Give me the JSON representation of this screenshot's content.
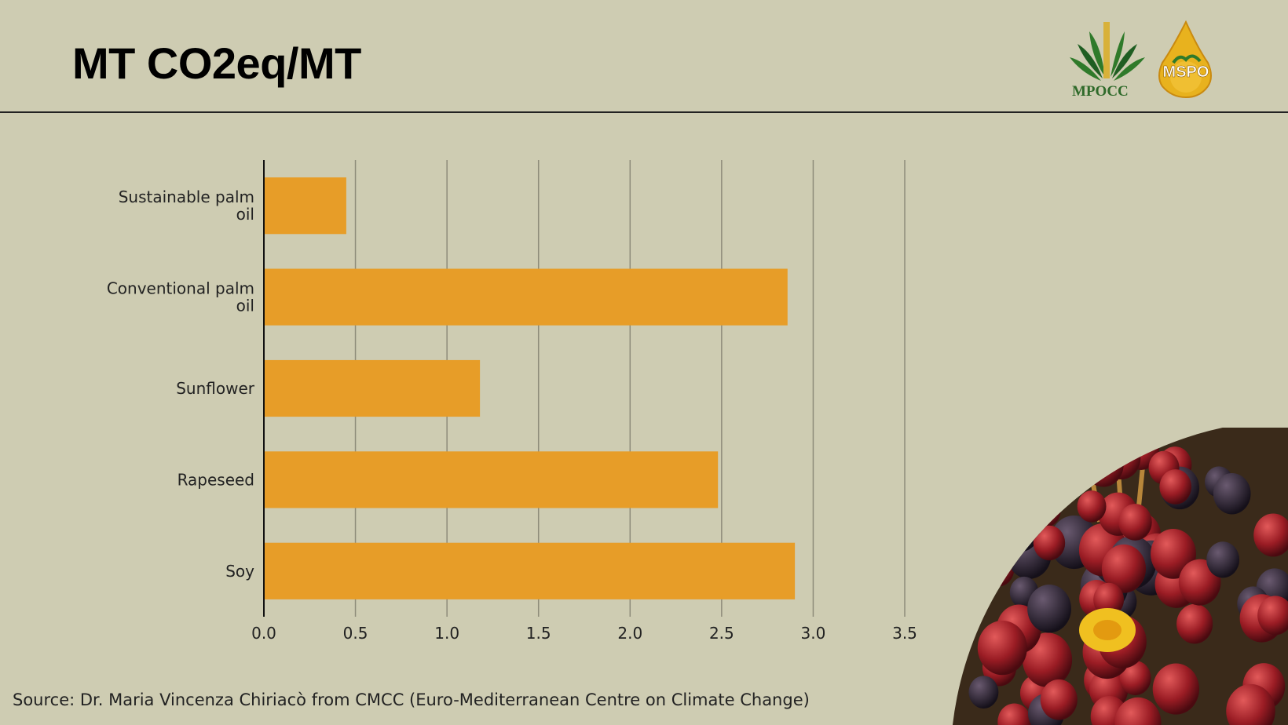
{
  "title": "MT CO2eq/MT",
  "logos": {
    "mpocc_text": "MPOCC",
    "mspo_text": "MSPO",
    "registered_mark": "®"
  },
  "chart_data": {
    "type": "bar",
    "orientation": "horizontal",
    "categories": [
      "Sustainable palm oil",
      "Conventional palm oil",
      "Sunflower",
      "Rapeseed",
      "Soy"
    ],
    "category_label_lines": [
      [
        "Sustainable palm",
        "oil"
      ],
      [
        "Conventional palm",
        "oil"
      ],
      [
        "Sunflower"
      ],
      [
        "Rapeseed"
      ],
      [
        "Soy"
      ]
    ],
    "values": [
      0.45,
      2.86,
      1.18,
      2.48,
      2.9
    ],
    "xlim": [
      0,
      3.5
    ],
    "xticks": [
      "0.0",
      "0.5",
      "1.0",
      "1.5",
      "2.0",
      "2.5",
      "3.0",
      "3.5"
    ],
    "xlabel": "",
    "ylabel": "",
    "grid": "vertical",
    "bar_color": "#e79d28"
  },
  "source": "Source: Dr. Maria Vincenza Chiriacò from CMCC (Euro-Mediterranean Centre on Climate Change)"
}
